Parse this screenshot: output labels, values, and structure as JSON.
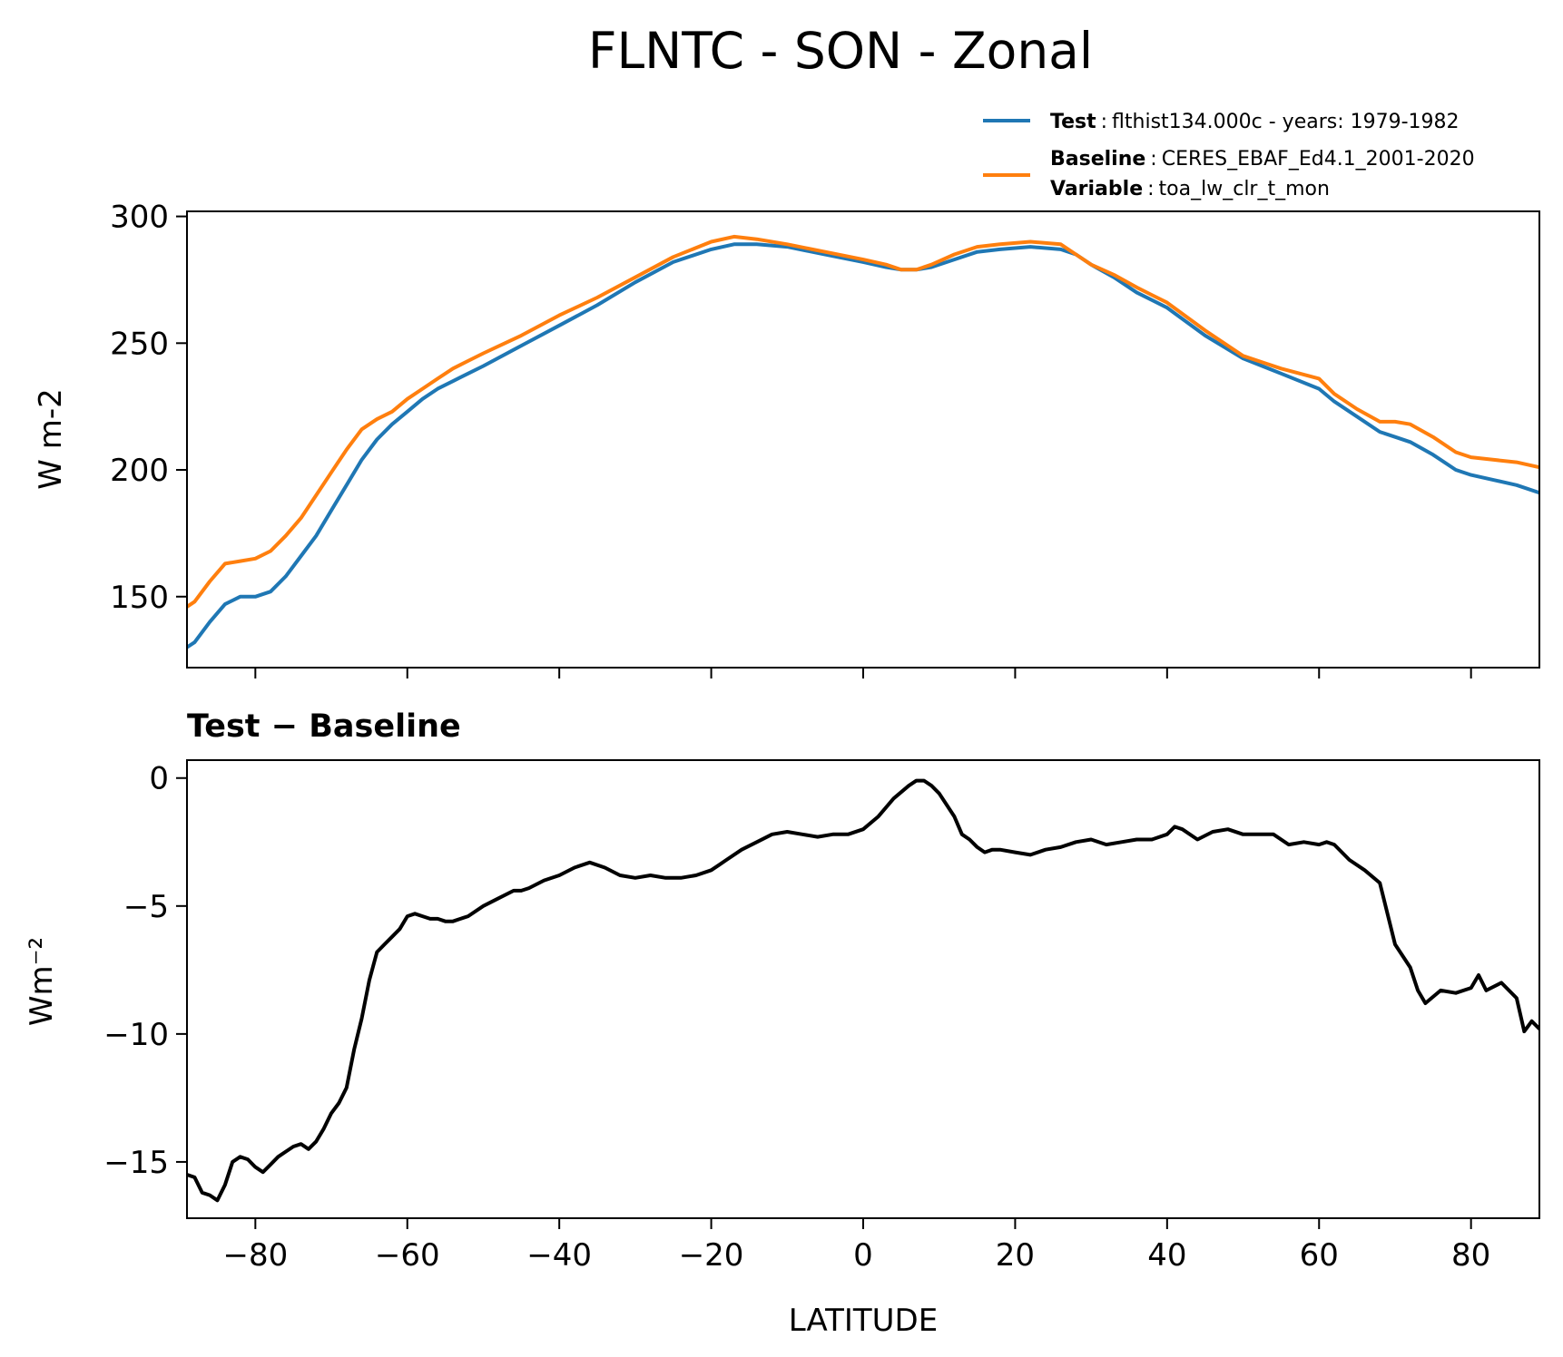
{
  "chart_data": [
    {
      "type": "line",
      "title": "FLNTC - SON - Zonal",
      "xlabel": "",
      "ylabel": "W m-2",
      "xlim": [
        -89,
        89
      ],
      "ylim": [
        122,
        302
      ],
      "xticks": [
        -80,
        -60,
        -40,
        -20,
        0,
        20,
        40,
        60,
        80
      ],
      "yticks": [
        150,
        200,
        250,
        300
      ],
      "ytick_labels": [
        "150",
        "200",
        "250",
        "300"
      ],
      "grid": false,
      "legend_position": "above-right",
      "legend": [
        {
          "bold": "Test",
          "sep": ":",
          "text": "flthist134.000c - years: 1979-1982",
          "color": "#1f77b4"
        },
        {
          "bold": "Baseline",
          "sep": ":",
          "text": "CERES_EBAF_Ed4.1_2001-2020",
          "color": "#ff7f0e"
        },
        {
          "bold": "Variable",
          "sep": ":",
          "text": "toa_lw_clr_t_mon"
        }
      ],
      "series": [
        {
          "name": "Test",
          "color": "#1f77b4",
          "x": [
            -89,
            -88,
            -86,
            -84,
            -82,
            -80,
            -78,
            -76,
            -74,
            -72,
            -70,
            -68,
            -66,
            -64,
            -62,
            -60,
            -58,
            -56,
            -54,
            -52,
            -50,
            -45,
            -40,
            -35,
            -30,
            -25,
            -20,
            -17,
            -14,
            -10,
            -5,
            0,
            3,
            5,
            7,
            9,
            12,
            15,
            18,
            22,
            26,
            28,
            30,
            33,
            36,
            40,
            45,
            50,
            55,
            60,
            62,
            65,
            68,
            70,
            72,
            75,
            78,
            80,
            83,
            86,
            89
          ],
          "values": [
            130,
            132,
            140,
            147,
            150,
            150,
            152,
            158,
            166,
            174,
            184,
            194,
            204,
            212,
            218,
            223,
            228,
            232,
            235,
            238,
            241,
            249,
            257,
            265,
            274,
            282,
            287,
            289,
            289,
            288,
            285,
            282,
            280,
            279,
            279,
            280,
            283,
            286,
            287,
            288,
            287,
            285,
            281,
            276,
            270,
            264,
            253,
            244,
            238,
            232,
            227,
            221,
            215,
            213,
            211,
            206,
            200,
            198,
            196,
            194,
            191
          ]
        },
        {
          "name": "Baseline",
          "color": "#ff7f0e",
          "x": [
            -89,
            -88,
            -86,
            -84,
            -82,
            -80,
            -78,
            -76,
            -74,
            -72,
            -70,
            -68,
            -66,
            -64,
            -62,
            -60,
            -58,
            -56,
            -54,
            -52,
            -50,
            -45,
            -40,
            -35,
            -30,
            -25,
            -20,
            -17,
            -14,
            -10,
            -5,
            0,
            3,
            5,
            7,
            9,
            12,
            15,
            18,
            22,
            26,
            28,
            30,
            33,
            36,
            40,
            45,
            50,
            55,
            60,
            62,
            65,
            68,
            70,
            72,
            75,
            78,
            80,
            83,
            86,
            89
          ],
          "values": [
            146,
            148,
            156,
            163,
            164,
            165,
            168,
            174,
            181,
            190,
            199,
            208,
            216,
            220,
            223,
            228,
            232,
            236,
            240,
            243,
            246,
            253,
            261,
            268,
            276,
            284,
            290,
            292,
            291,
            289,
            286,
            283,
            281,
            279,
            279,
            281,
            285,
            288,
            289,
            290,
            289,
            285,
            281,
            277,
            272,
            266,
            255,
            245,
            240,
            236,
            230,
            224,
            219,
            219,
            218,
            213,
            207,
            205,
            204,
            203,
            201
          ]
        }
      ]
    },
    {
      "type": "line",
      "title": "Test − Baseline",
      "xlabel": "LATITUDE",
      "ylabel": "Wm⁻²",
      "xlim": [
        -89,
        89
      ],
      "ylim": [
        -17.2,
        0.7
      ],
      "xticks": [
        -80,
        -60,
        -40,
        -20,
        0,
        20,
        40,
        60,
        80
      ],
      "xtick_labels": [
        "−80",
        "−60",
        "−40",
        "−20",
        "0",
        "20",
        "40",
        "60",
        "80"
      ],
      "yticks": [
        0,
        -5,
        -10,
        -15
      ],
      "ytick_labels": [
        "0",
        "−5",
        "−10",
        "−15"
      ],
      "grid": false,
      "series": [
        {
          "name": "Test - Baseline",
          "color": "#000000",
          "x": [
            -89,
            -88,
            -87,
            -86,
            -85,
            -84,
            -83,
            -82,
            -81,
            -80,
            -79,
            -78,
            -77,
            -76,
            -75,
            -74,
            -73,
            -72,
            -71,
            -70,
            -69,
            -68,
            -67,
            -66,
            -65,
            -64,
            -63,
            -62,
            -61,
            -60,
            -59,
            -58,
            -57,
            -56,
            -55,
            -54,
            -53,
            -52,
            -50,
            -48,
            -46,
            -45,
            -44,
            -42,
            -40,
            -38,
            -36,
            -34,
            -32,
            -30,
            -28,
            -26,
            -24,
            -22,
            -20,
            -19,
            -18,
            -16,
            -14,
            -12,
            -10,
            -8,
            -6,
            -4,
            -2,
            0,
            2,
            4,
            6,
            7,
            8,
            9,
            10,
            12,
            13,
            14,
            15,
            16,
            17,
            18,
            20,
            22,
            24,
            26,
            28,
            30,
            32,
            34,
            36,
            38,
            40,
            41,
            42,
            44,
            46,
            48,
            50,
            52,
            54,
            56,
            58,
            60,
            61,
            62,
            64,
            66,
            68,
            70,
            72,
            73,
            74,
            76,
            78,
            80,
            81,
            82,
            84,
            86,
            87,
            88,
            89
          ],
          "values": [
            -15.5,
            -15.6,
            -16.2,
            -16.3,
            -16.5,
            -15.9,
            -15.0,
            -14.8,
            -14.9,
            -15.2,
            -15.4,
            -15.1,
            -14.8,
            -14.6,
            -14.4,
            -14.3,
            -14.5,
            -14.2,
            -13.7,
            -13.1,
            -12.7,
            -12.1,
            -10.6,
            -9.4,
            -7.9,
            -6.8,
            -6.5,
            -6.2,
            -5.9,
            -5.4,
            -5.3,
            -5.4,
            -5.5,
            -5.5,
            -5.6,
            -5.6,
            -5.5,
            -5.4,
            -5.0,
            -4.7,
            -4.4,
            -4.4,
            -4.3,
            -4.0,
            -3.8,
            -3.5,
            -3.3,
            -3.5,
            -3.8,
            -3.9,
            -3.8,
            -3.9,
            -3.9,
            -3.8,
            -3.6,
            -3.4,
            -3.2,
            -2.8,
            -2.5,
            -2.2,
            -2.1,
            -2.2,
            -2.3,
            -2.2,
            -2.2,
            -2.0,
            -1.5,
            -0.8,
            -0.3,
            -0.1,
            -0.1,
            -0.3,
            -0.6,
            -1.5,
            -2.2,
            -2.4,
            -2.7,
            -2.9,
            -2.8,
            -2.8,
            -2.9,
            -3.0,
            -2.8,
            -2.7,
            -2.5,
            -2.4,
            -2.6,
            -2.5,
            -2.4,
            -2.4,
            -2.2,
            -1.9,
            -2.0,
            -2.4,
            -2.1,
            -2.0,
            -2.2,
            -2.2,
            -2.2,
            -2.6,
            -2.5,
            -2.6,
            -2.5,
            -2.6,
            -3.2,
            -3.6,
            -4.1,
            -6.5,
            -7.4,
            -8.3,
            -8.8,
            -8.3,
            -8.4,
            -8.2,
            -7.7,
            -8.3,
            -8.0,
            -8.6,
            -9.9,
            -9.5,
            -9.8
          ]
        }
      ]
    }
  ]
}
